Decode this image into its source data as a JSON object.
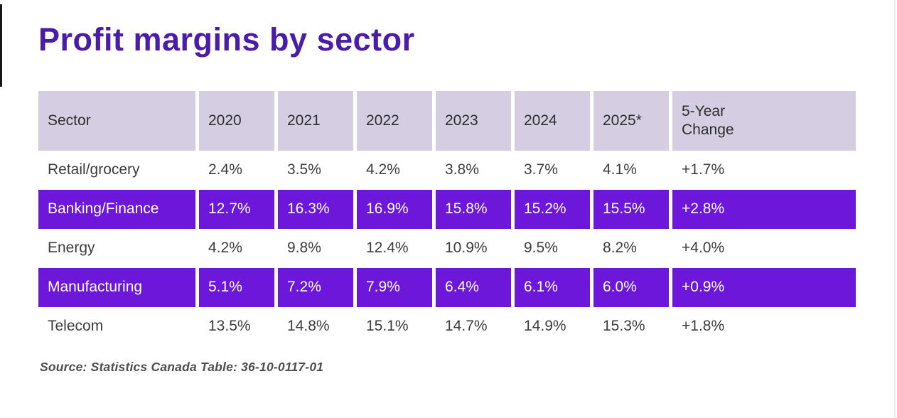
{
  "page": {
    "title": "Profit margins by sector",
    "source_note": "Source: Statistics Canada Table: 36-10-0117-01"
  },
  "colors": {
    "title": "#4a1da9",
    "header_bg": "#d5cee3",
    "header_text": "#2e2e2e",
    "body_text": "#3d3d3d",
    "highlight_bg": "#6c17da",
    "highlight_text": "#ffffff",
    "source_text": "#4f4f4f"
  },
  "chart_data": {
    "type": "table",
    "title": "Profit margins by sector",
    "columns": [
      "Sector",
      "2020",
      "2021",
      "2022",
      "2023",
      "2024",
      "2025*",
      "5-Year Change"
    ],
    "rows": [
      {
        "sector": "Retail/grocery",
        "values": [
          "2.4%",
          "3.5%",
          "4.2%",
          "3.8%",
          "3.7%",
          "4.1%",
          "+1.7%"
        ],
        "highlighted": false
      },
      {
        "sector": "Banking/Finance",
        "values": [
          "12.7%",
          "16.3%",
          "16.9%",
          "15.8%",
          "15.2%",
          "15.5%",
          "+2.8%"
        ],
        "highlighted": true
      },
      {
        "sector": "Energy",
        "values": [
          "4.2%",
          "9.8%",
          "12.4%",
          "10.9%",
          "9.5%",
          "8.2%",
          "+4.0%"
        ],
        "highlighted": false
      },
      {
        "sector": "Manufacturing",
        "values": [
          "5.1%",
          "7.2%",
          "7.9%",
          "6.4%",
          "6.1%",
          "6.0%",
          "+0.9%"
        ],
        "highlighted": true
      },
      {
        "sector": "Telecom",
        "values": [
          "13.5%",
          "14.8%",
          "15.1%",
          "14.7%",
          "14.9%",
          "15.3%",
          "+1.8%"
        ],
        "highlighted": false
      }
    ],
    "layout": {
      "highlight_style": "full-row purple fill with white text",
      "grid": "white gaps between columns"
    }
  }
}
